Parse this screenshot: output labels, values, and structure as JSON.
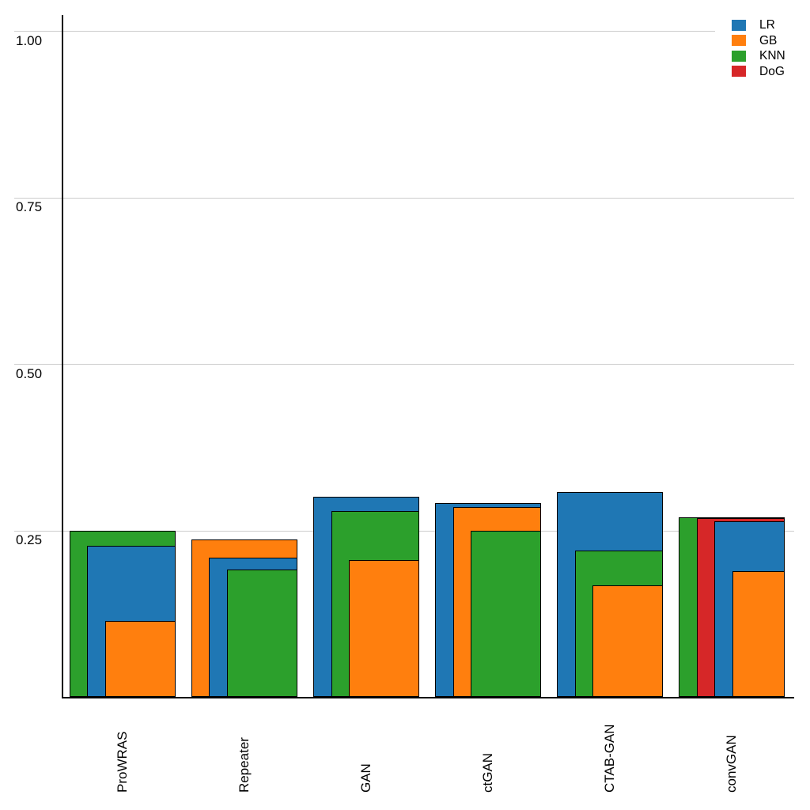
{
  "chart_data": {
    "type": "bar",
    "variant": "overlapping-nested-bars",
    "title": "",
    "xlabel": "",
    "ylabel": "",
    "categories": [
      "ProWRAS",
      "Repeater",
      "GAN",
      "ctGAN",
      "CTAB-GAN",
      "convGAN"
    ],
    "series": [
      {
        "name": "LR",
        "color": "#1f77b4",
        "values": [
          0.227,
          0.209,
          0.3,
          0.291,
          0.308,
          0.264
        ]
      },
      {
        "name": "GB",
        "color": "#ff7f0e",
        "values": [
          0.114,
          0.236,
          0.206,
          0.285,
          0.167,
          0.189
        ]
      },
      {
        "name": "KNN",
        "color": "#2ca02c",
        "values": [
          0.249,
          0.191,
          0.279,
          0.25,
          0.22,
          0.27
        ]
      },
      {
        "name": "DoG",
        "color": "#d62728",
        "values": [
          null,
          null,
          null,
          null,
          null,
          0.269
        ]
      }
    ],
    "ylim": [
      0,
      1.05
    ],
    "yticks": [
      {
        "value": 0.25,
        "label": "0.25"
      },
      {
        "value": 0.5,
        "label": "0.50"
      },
      {
        "value": 0.75,
        "label": "0.75"
      },
      {
        "value": 1.0,
        "label": "1.00"
      }
    ],
    "grid": "horizontal",
    "grid_color": "#cccccc",
    "axis_color": "#000000",
    "bar_edge_color": "#000000",
    "background": "#ffffff",
    "legend_position": "top-right",
    "bar_order_note": "bars in each group sorted descending; largest widest at back, right-aligned"
  }
}
